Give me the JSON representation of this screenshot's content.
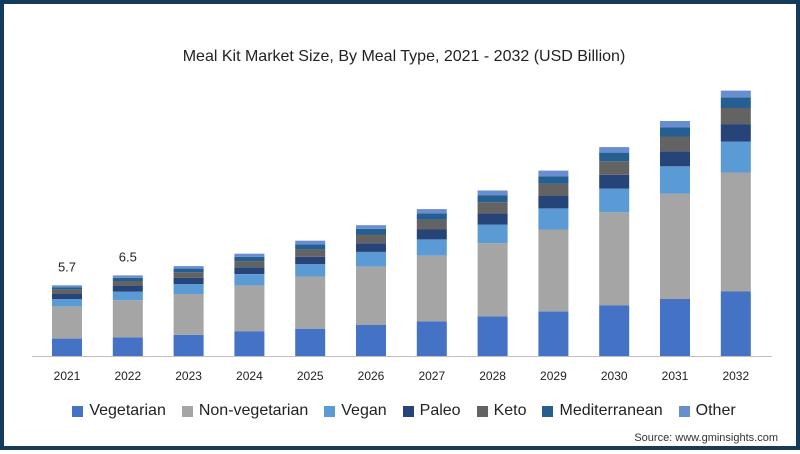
{
  "title": "Meal Kit Market Size, By Meal Type, 2021 - 2032 (USD Billion)",
  "source": "Source: www.gminsights.com",
  "chart_data": {
    "type": "bar",
    "stacked": true,
    "categories": [
      "2021",
      "2022",
      "2023",
      "2024",
      "2025",
      "2026",
      "2027",
      "2028",
      "2029",
      "2030",
      "2031",
      "2032"
    ],
    "totals_labels": [
      "5.7",
      "6.5",
      "",
      "",
      "",
      "",
      "",
      "",
      "",
      "",
      "",
      ""
    ],
    "grid": false,
    "legend_position": "bottom",
    "series": [
      {
        "name": "Vegetarian",
        "color": "#4472c4",
        "values": [
          1.4,
          1.5,
          1.7,
          2.0,
          2.2,
          2.5,
          2.8,
          3.2,
          3.6,
          4.1,
          4.6,
          5.2
        ]
      },
      {
        "name": "Non-vegetarian",
        "color": "#a5a5a5",
        "values": [
          2.6,
          3.0,
          3.3,
          3.7,
          4.2,
          4.7,
          5.3,
          5.9,
          6.6,
          7.5,
          8.5,
          9.6
        ]
      },
      {
        "name": "Vegan",
        "color": "#5b9bd5",
        "values": [
          0.6,
          0.7,
          0.8,
          0.9,
          1.0,
          1.2,
          1.3,
          1.5,
          1.7,
          1.9,
          2.2,
          2.5
        ]
      },
      {
        "name": "Paleo",
        "color": "#264478",
        "values": [
          0.4,
          0.45,
          0.5,
          0.55,
          0.6,
          0.7,
          0.8,
          0.9,
          1.0,
          1.1,
          1.2,
          1.4
        ]
      },
      {
        "name": "Keto",
        "color": "#636363",
        "values": [
          0.35,
          0.4,
          0.45,
          0.5,
          0.6,
          0.7,
          0.8,
          0.9,
          1.0,
          1.1,
          1.2,
          1.3
        ]
      },
      {
        "name": "Mediterranean",
        "color": "#255e91",
        "values": [
          0.2,
          0.25,
          0.3,
          0.35,
          0.4,
          0.45,
          0.5,
          0.55,
          0.6,
          0.7,
          0.75,
          0.85
        ]
      },
      {
        "name": "Other",
        "color": "#698ed0",
        "values": [
          0.15,
          0.2,
          0.2,
          0.25,
          0.3,
          0.3,
          0.35,
          0.4,
          0.45,
          0.45,
          0.5,
          0.55
        ]
      }
    ]
  }
}
